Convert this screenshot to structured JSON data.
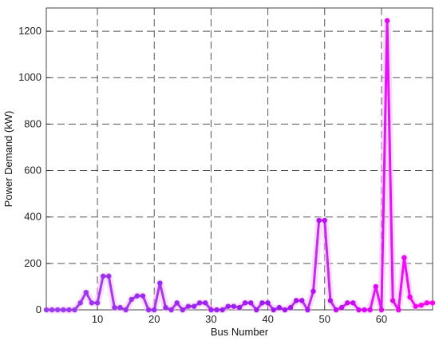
{
  "chart_data": {
    "type": "line",
    "title": "",
    "xlabel": "Bus Number",
    "ylabel": "Power Demand (kW)",
    "xlim": [
      1,
      69
    ],
    "ylim": [
      0,
      1300
    ],
    "xticks": [
      10,
      20,
      30,
      40,
      50,
      60
    ],
    "yticks": [
      0,
      200,
      400,
      600,
      800,
      1000,
      1200
    ],
    "grid": true,
    "legend": "none",
    "colors": {
      "line_start": "#9b3cf0",
      "line_end": "#ff00ff",
      "glow": "#f4b8f4",
      "grid": "#555555"
    },
    "series": [
      {
        "x": [
          1,
          2,
          3,
          4,
          5,
          6,
          7,
          8,
          9,
          10,
          11,
          12,
          13,
          14,
          15,
          16,
          17,
          18,
          19,
          20,
          21,
          22,
          23,
          24,
          25,
          26,
          27,
          28,
          29,
          30,
          31,
          32,
          33,
          34,
          35,
          36,
          37,
          38,
          39,
          40,
          41,
          42,
          43,
          44,
          45,
          46,
          47,
          48,
          49,
          50,
          51,
          52,
          53,
          54,
          55,
          56,
          57,
          58,
          59,
          60,
          61,
          62,
          63,
          64,
          65,
          66,
          67,
          68,
          69
        ],
        "values": [
          0,
          0,
          0,
          0,
          0,
          0,
          30,
          75,
          30,
          30,
          145,
          145,
          10,
          10,
          0,
          45,
          60,
          60,
          0,
          0,
          115,
          10,
          0,
          30,
          0,
          15,
          15,
          30,
          30,
          0,
          0,
          0,
          15,
          15,
          10,
          30,
          30,
          0,
          30,
          30,
          0,
          10,
          0,
          10,
          40,
          40,
          0,
          80,
          385,
          385,
          40,
          0,
          10,
          30,
          30,
          0,
          0,
          0,
          100,
          0,
          1245,
          40,
          0,
          225,
          55,
          15,
          20,
          30,
          30
        ]
      }
    ]
  }
}
